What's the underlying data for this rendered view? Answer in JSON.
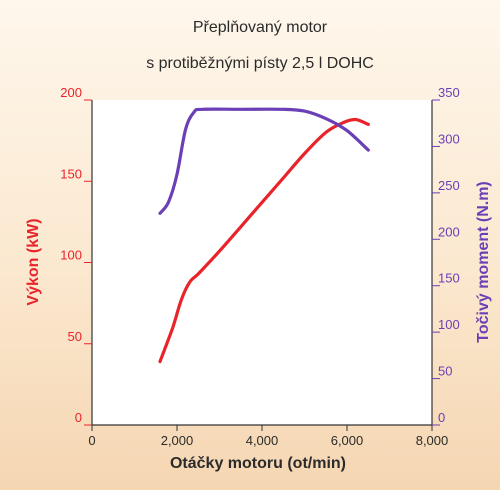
{
  "chart_data": {
    "type": "line",
    "title": "Přeplňovaný motor",
    "subtitle": "s protiběžnými písty 2,5 l DOHC",
    "xlabel": "Otáčky motoru (ot/min)",
    "ylabel_left": "Výkon (kW)",
    "ylabel_right": "Točivý moment (N.m)",
    "xlim": [
      0,
      8000
    ],
    "ylim_left": [
      0,
      200
    ],
    "ylim_right": [
      0,
      350
    ],
    "x_ticks": [
      {
        "value": 0,
        "label": "0"
      },
      {
        "value": 2000,
        "label": "2,000"
      },
      {
        "value": 4000,
        "label": "4,000"
      },
      {
        "value": 6000,
        "label": "6,000"
      },
      {
        "value": 8000,
        "label": "8,000"
      }
    ],
    "y_ticks_left": [
      {
        "value": 0,
        "label": "0"
      },
      {
        "value": 50,
        "label": "50"
      },
      {
        "value": 100,
        "label": "100"
      },
      {
        "value": 150,
        "label": "150"
      },
      {
        "value": 200,
        "label": "200"
      }
    ],
    "y_ticks_right": [
      {
        "value": 0,
        "label": "0"
      },
      {
        "value": 50,
        "label": "50"
      },
      {
        "value": 100,
        "label": "100"
      },
      {
        "value": 150,
        "label": "150"
      },
      {
        "value": 200,
        "label": "200"
      },
      {
        "value": 250,
        "label": "250"
      },
      {
        "value": 300,
        "label": "300"
      },
      {
        "value": 350,
        "label": "350"
      }
    ],
    "grid": false,
    "colors": {
      "power": "#e8242a",
      "torque": "#6b3fb5",
      "axis": "#333333"
    },
    "series": [
      {
        "key": "power",
        "axis": "left",
        "points": [
          [
            1600,
            39
          ],
          [
            1900,
            60
          ],
          [
            2100,
            77
          ],
          [
            2300,
            88
          ],
          [
            2500,
            93
          ],
          [
            3000,
            107
          ],
          [
            3500,
            122
          ],
          [
            4000,
            137
          ],
          [
            4500,
            152
          ],
          [
            5000,
            167
          ],
          [
            5500,
            180
          ],
          [
            5900,
            186
          ],
          [
            6200,
            188
          ],
          [
            6500,
            185
          ]
        ]
      },
      {
        "key": "torque",
        "axis": "right",
        "points": [
          [
            1600,
            228
          ],
          [
            1800,
            240
          ],
          [
            2000,
            270
          ],
          [
            2200,
            318
          ],
          [
            2400,
            337
          ],
          [
            2600,
            340
          ],
          [
            3500,
            340
          ],
          [
            4500,
            340
          ],
          [
            5000,
            338
          ],
          [
            5500,
            330
          ],
          [
            6000,
            317
          ],
          [
            6500,
            296
          ]
        ]
      }
    ]
  }
}
